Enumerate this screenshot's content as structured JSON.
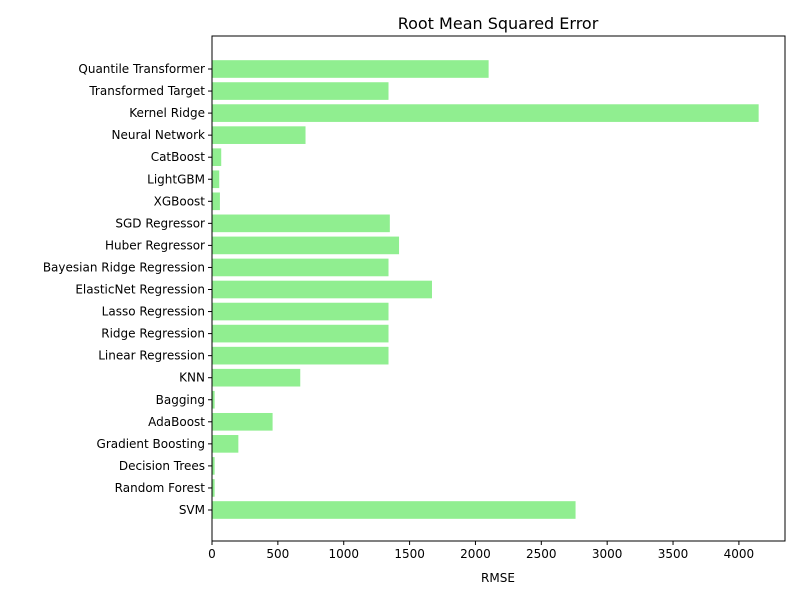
{
  "chart_data": {
    "type": "bar",
    "orientation": "horizontal",
    "title": "Root Mean Squared Error",
    "xlabel": "RMSE",
    "ylabel": "",
    "xlim": [
      0,
      4350
    ],
    "xticks": [
      0,
      500,
      1000,
      1500,
      2000,
      2500,
      3000,
      3500,
      4000
    ],
    "grid": false,
    "bar_color": "#90ee90",
    "categories": [
      "Quantile Transformer",
      "Transformed Target",
      "Kernel Ridge",
      "Neural Network",
      "CatBoost",
      "LightGBM",
      "XGBoost",
      "SGD Regressor",
      "Huber Regressor",
      "Bayesian Ridge Regression",
      "ElasticNet Regression",
      "Lasso Regression",
      "Ridge Regression",
      "Linear Regression",
      "KNN",
      "Bagging",
      "AdaBoost",
      "Gradient Boosting",
      "Decision Trees",
      "Random Forest",
      "SVM"
    ],
    "values": [
      2100,
      1340,
      4150,
      710,
      70,
      55,
      60,
      1350,
      1420,
      1340,
      1670,
      1340,
      1340,
      1340,
      670,
      20,
      460,
      200,
      20,
      20,
      2760
    ]
  }
}
